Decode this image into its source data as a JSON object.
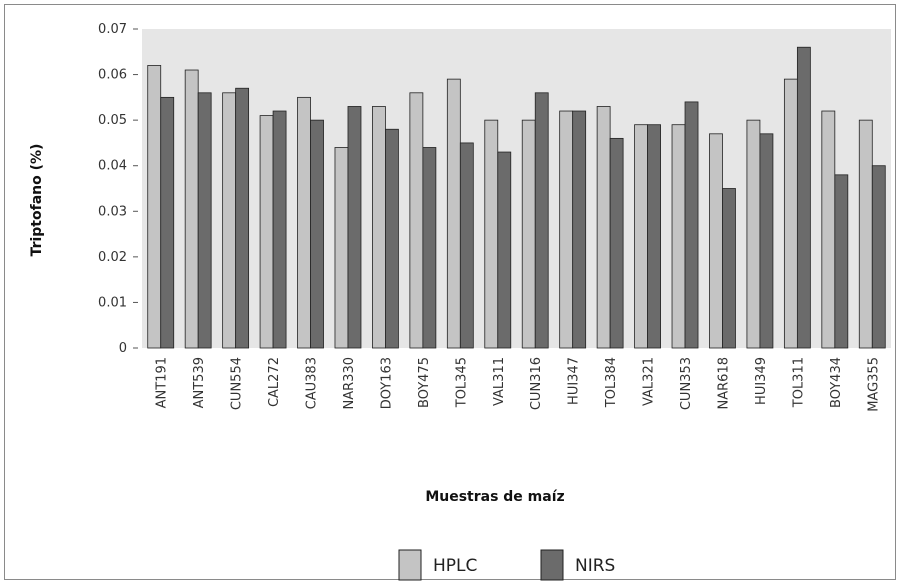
{
  "chart_data": {
    "type": "bar",
    "title": "",
    "xlabel": "Muestras de maíz",
    "ylabel": "Triptofano (%)",
    "ylim": [
      0,
      0.07
    ],
    "yticks": [
      "0",
      "0.01",
      "0.02",
      "0.03",
      "0.04",
      "0.05",
      "0.06",
      "0.07"
    ],
    "grid": false,
    "legend_position": "bottom",
    "categories": [
      "ANT191",
      "ANT539",
      "CUN554",
      "CAL272",
      "CAU383",
      "NAR330",
      "DOY163",
      "BOY475",
      "TOL345",
      "VAL311",
      "CUN316",
      "HUI347",
      "TOL384",
      "VAL321",
      "CUN353",
      "NAR618",
      "HUI349",
      "TOL311",
      "BOY434",
      "MAG355"
    ],
    "series": [
      {
        "name": "HPLC",
        "color": "#c4c4c4",
        "values": [
          0.062,
          0.061,
          0.056,
          0.051,
          0.055,
          0.044,
          0.053,
          0.056,
          0.059,
          0.05,
          0.05,
          0.052,
          0.053,
          0.049,
          0.049,
          0.047,
          0.05,
          0.059,
          0.052,
          0.05
        ]
      },
      {
        "name": "NIRS",
        "color": "#6b6b6b",
        "values": [
          0.055,
          0.056,
          0.057,
          0.052,
          0.05,
          0.053,
          0.048,
          0.044,
          0.045,
          0.043,
          0.056,
          0.052,
          0.046,
          0.049,
          0.054,
          0.035,
          0.047,
          0.066,
          0.038,
          0.04
        ]
      }
    ],
    "plot_background": "#e6e6e6"
  }
}
